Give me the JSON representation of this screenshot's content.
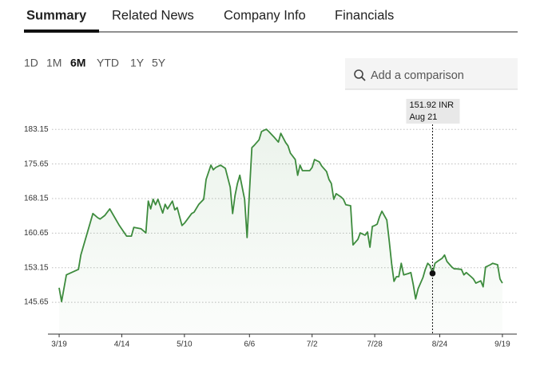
{
  "tabs": [
    "Summary",
    "Related News",
    "Company Info",
    "Financials"
  ],
  "ranges": [
    "1D",
    "1M",
    "6M",
    "YTD",
    "1Y",
    "5Y"
  ],
  "search_placeholder": "Add a comparison",
  "chart_data": {
    "type": "line",
    "x": [
      "3/19",
      "3/20",
      "3/22",
      "3/27",
      "3/28",
      "4/2",
      "4/4",
      "4/5",
      "4/7",
      "4/9",
      "4/13",
      "4/16",
      "4/18",
      "4/19",
      "4/22",
      "4/24",
      "4/25",
      "4/26",
      "4/27",
      "4/28",
      "4/29",
      "5/1",
      "5/2",
      "5/3",
      "5/5",
      "5/6",
      "5/7",
      "5/9",
      "5/10",
      "5/11",
      "5/13",
      "5/14",
      "5/16",
      "5/18",
      "5/19",
      "5/21",
      "5/22",
      "5/23",
      "5/25",
      "5/27",
      "5/29",
      "5/30",
      "5/31",
      "6/1",
      "6/2",
      "6/4",
      "6/5",
      "6/6",
      "6/7",
      "6/8",
      "6/10",
      "6/11",
      "6/13",
      "6/14",
      "6/16",
      "6/18",
      "6/19",
      "6/21",
      "6/22",
      "6/23",
      "6/25",
      "6/26",
      "6/27",
      "6/28",
      "6/30",
      "7/1",
      "7/2",
      "7/3",
      "7/5",
      "7/6",
      "7/8",
      "7/9",
      "7/10",
      "7/11",
      "7/12",
      "7/14",
      "7/15",
      "7/16",
      "7/18",
      "7/19",
      "7/21",
      "7/22",
      "7/24",
      "7/25",
      "7/26",
      "7/27",
      "7/28",
      "7/29",
      "7/30",
      "7/31",
      "8/2",
      "8/3",
      "8/4",
      "8/5",
      "8/6",
      "8/7",
      "8/8",
      "8/9",
      "8/11",
      "8/12",
      "8/13",
      "8/14",
      "8/15",
      "8/17",
      "8/18",
      "8/19",
      "8/20",
      "8/21",
      "8/22",
      "8/23",
      "8/25",
      "8/26",
      "8/27",
      "8/29",
      "8/30",
      "8/31",
      "9/2",
      "9/3",
      "9/4",
      "9/6",
      "9/7",
      "9/8",
      "9/10",
      "9/11",
      "9/12",
      "9/14",
      "9/15",
      "9/17",
      "9/18",
      "9/19"
    ],
    "series": [
      {
        "color": "#3d8b3d",
        "values": [
          148.8,
          145.8,
          151.6,
          152.8,
          155.9,
          164.9,
          164.0,
          163.7,
          164.5,
          165.9,
          162.3,
          160.0,
          160.0,
          161.9,
          161.6,
          160.7,
          167.6,
          165.9,
          168.0,
          166.8,
          168.0,
          165.0,
          166.9,
          165.9,
          167.6,
          165.7,
          166.2,
          162.3,
          162.8,
          163.5,
          164.9,
          165.2,
          166.9,
          168.0,
          172.3,
          175.4,
          174.4,
          174.9,
          175.4,
          174.7,
          170.6,
          164.9,
          168.8,
          171.4,
          173.2,
          168.0,
          159.7,
          169.7,
          179.2,
          179.7,
          180.9,
          182.7,
          183.2,
          182.7,
          181.6,
          180.4,
          182.3,
          180.3,
          179.6,
          178.0,
          176.6,
          173.2,
          175.4,
          174.2,
          174.2,
          174.2,
          174.9,
          176.6,
          176.1,
          175.2,
          174.0,
          172.3,
          171.4,
          168.0,
          169.2,
          168.5,
          168.0,
          166.8,
          166.6,
          158.1,
          159.3,
          160.7,
          160.2,
          160.9,
          157.6,
          162.1,
          162.3,
          162.6,
          164.2,
          165.4,
          163.5,
          159.0,
          154.1,
          150.2,
          151.2,
          151.2,
          154.1,
          151.6,
          151.9,
          152.1,
          149.5,
          146.4,
          148.6,
          151.0,
          152.8,
          154.1,
          153.6,
          151.92,
          154.1,
          154.5,
          155.2,
          155.9,
          154.5,
          153.3,
          152.9,
          152.9,
          152.8,
          151.6,
          152.1,
          151.2,
          150.7,
          149.8,
          150.3,
          149.0,
          153.3,
          153.8,
          154.1,
          153.8,
          150.7,
          149.8
        ]
      }
    ],
    "xlim": [
      "3/16",
      "9/25"
    ],
    "xticks": [
      "3/19",
      "4/14",
      "5/10",
      "6/6",
      "7/2",
      "7/28",
      "8/24",
      "9/19"
    ],
    "ylim": [
      138.75,
      187
    ],
    "yticks": [
      145.65,
      153.15,
      160.65,
      168.15,
      175.65,
      183.15
    ],
    "grid": true,
    "tooltip": {
      "x": "8/21",
      "value": 151.92,
      "value_label": "151.92 INR",
      "date_label": "Aug 21"
    }
  }
}
